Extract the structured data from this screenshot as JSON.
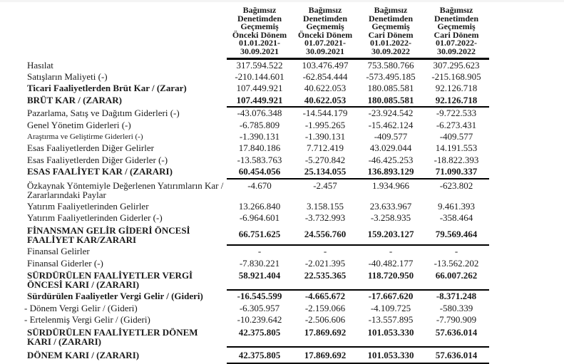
{
  "page": {
    "background": "#ffffff",
    "text_color": "#1a1a1a",
    "rule_color": "#000000"
  },
  "table": {
    "header": {
      "columns": [
        "Bağımsız\nDenetimden\nGeçmemiş\nÖnceki Dönem\n01.01.2021-\n30.09.2021",
        "Bağımsız\nDenetimden\nGeçmemiş\nÖnceki Dönem\n01.07.2021-\n30.09.2021",
        "Bağımsız\nDenetimden\nGeçmemiş\nCari Dönem\n01.01.2022-\n30.09.2022",
        "Bağımsız\nDenetimden\nGeçmemiş\nCari Dönem\n01.07.2022-\n30.09.2022"
      ]
    },
    "rows": [
      {
        "label": "Hasılat",
        "type": "item",
        "values": [
          "317.594.522",
          "103.476.497",
          "753.580.766",
          "307.295.623"
        ]
      },
      {
        "label": "Satışların Maliyeti (-)",
        "type": "item",
        "values": [
          "-210.144.601",
          "-62.854.444",
          "-573.495.185",
          "-215.168.905"
        ]
      },
      {
        "label": "Ticari Faaliyetlerden Brüt Kar / (Zarar)",
        "type": "bold-label",
        "values": [
          "107.449.921",
          "40.622.053",
          "180.085.581",
          "92.126.718"
        ]
      },
      {
        "label": "BRÜT KAR / (ZARAR)",
        "type": "total",
        "values": [
          "107.449.921",
          "40.622.053",
          "180.085.581",
          "92.126.718"
        ]
      },
      {
        "label": "Pazarlama, Satış ve Dağıtım Giderleri (-)",
        "type": "item",
        "values": [
          "-43.076.348",
          "-14.544.179",
          "-23.924.542",
          "-9.722.533"
        ]
      },
      {
        "label": "Genel Yönetim Giderleri (-)",
        "type": "item",
        "values": [
          "-6.785.809",
          "-1.995.265",
          "-15.462.124",
          "-6.273.431"
        ]
      },
      {
        "label": "Araştırma ve Geliştirme Giderleri (-)",
        "type": "item-small",
        "values": [
          "-1.390.131",
          "-1.390.131",
          "-409.577",
          "-409.577"
        ]
      },
      {
        "label": "Esas Faaliyetlerden Diğer Gelirler",
        "type": "item",
        "values": [
          "17.840.186",
          "7.712.419",
          "43.029.044",
          "14.191.553"
        ]
      },
      {
        "label": "Esas Faaliyetlerden Diğer Giderler (-)",
        "type": "item",
        "values": [
          "-13.583.763",
          "-5.270.842",
          "-46.425.253",
          "-18.822.393"
        ]
      },
      {
        "label": "ESAS FAALİYET KAR / (ZARARI)",
        "type": "total",
        "values": [
          "60.454.056",
          "25.134.055",
          "136.893.129",
          "71.090.337"
        ]
      },
      {
        "label": "Özkaynak Yöntemiyle Değerlenen Yatırımların Kar / Zararlarındaki Paylar",
        "type": "item",
        "values": [
          "-4.670",
          "-2.457",
          "1.934.966",
          "-623.802"
        ]
      },
      {
        "label": "Yatırım Faaliyetlerinden Gelirler",
        "type": "item",
        "values": [
          "13.266.840",
          "3.158.155",
          "23.633.967",
          "9.461.393"
        ]
      },
      {
        "label": "Yatırım Faaliyetlerinden Giderler (-)",
        "type": "item",
        "values": [
          "-6.964.601",
          "-3.732.993",
          "-3.258.935",
          "-358.464"
        ]
      },
      {
        "label": "FİNANSMAN GELİR GİDERİ ÖNCESİ FAALİYET KAR/ZARARI",
        "type": "total",
        "values": [
          "66.751.625",
          "24.556.760",
          "159.203.127",
          "79.569.464"
        ]
      },
      {
        "label": "Finansal Gelirler",
        "type": "item",
        "values": [
          "-",
          "-",
          "-",
          "-"
        ]
      },
      {
        "label": "Finansal Giderler (-)",
        "type": "item",
        "values": [
          "-7.830.221",
          "-2.021.395",
          "-40.482.177",
          "-13.562.202"
        ]
      },
      {
        "label": "SÜRDÜRÜLEN FAALİYETLER VERGİ ÖNCESİ KARI / (ZARARI)",
        "type": "total",
        "values": [
          "58.921.404",
          "22.535.365",
          "118.720.950",
          "66.007.262"
        ]
      },
      {
        "label": "Sürdürülen Faaliyetler Vergi Gelir / (Gideri)",
        "type": "bold-item",
        "values": [
          "-16.545.599",
          "-4.665.672",
          "-17.667.620",
          "-8.371.248"
        ]
      },
      {
        "label": "- Dönem Vergi Gelir / (Gideri)",
        "type": "sub-item",
        "values": [
          "-6.305.957",
          "-2.159.066",
          "-4.109.725",
          "-580.339"
        ]
      },
      {
        "label": "- Ertelenmiş Vergi Gelir / (Gideri)",
        "type": "sub-item",
        "values": [
          "-10.239.642",
          "-2.506.606",
          "-13.557.895",
          "-7.790.909"
        ]
      },
      {
        "label": "SÜRDÜRÜLEN FAALİYETLER DÖNEM KARI / (ZARARI)",
        "type": "total",
        "values": [
          "42.375.805",
          "17.869.692",
          "101.053.330",
          "57.636.014"
        ]
      },
      {
        "label": "DÖNEM KARI / (ZARARI)",
        "type": "total",
        "values": [
          "42.375.805",
          "17.869.692",
          "101.053.330",
          "57.636.014"
        ]
      }
    ]
  }
}
